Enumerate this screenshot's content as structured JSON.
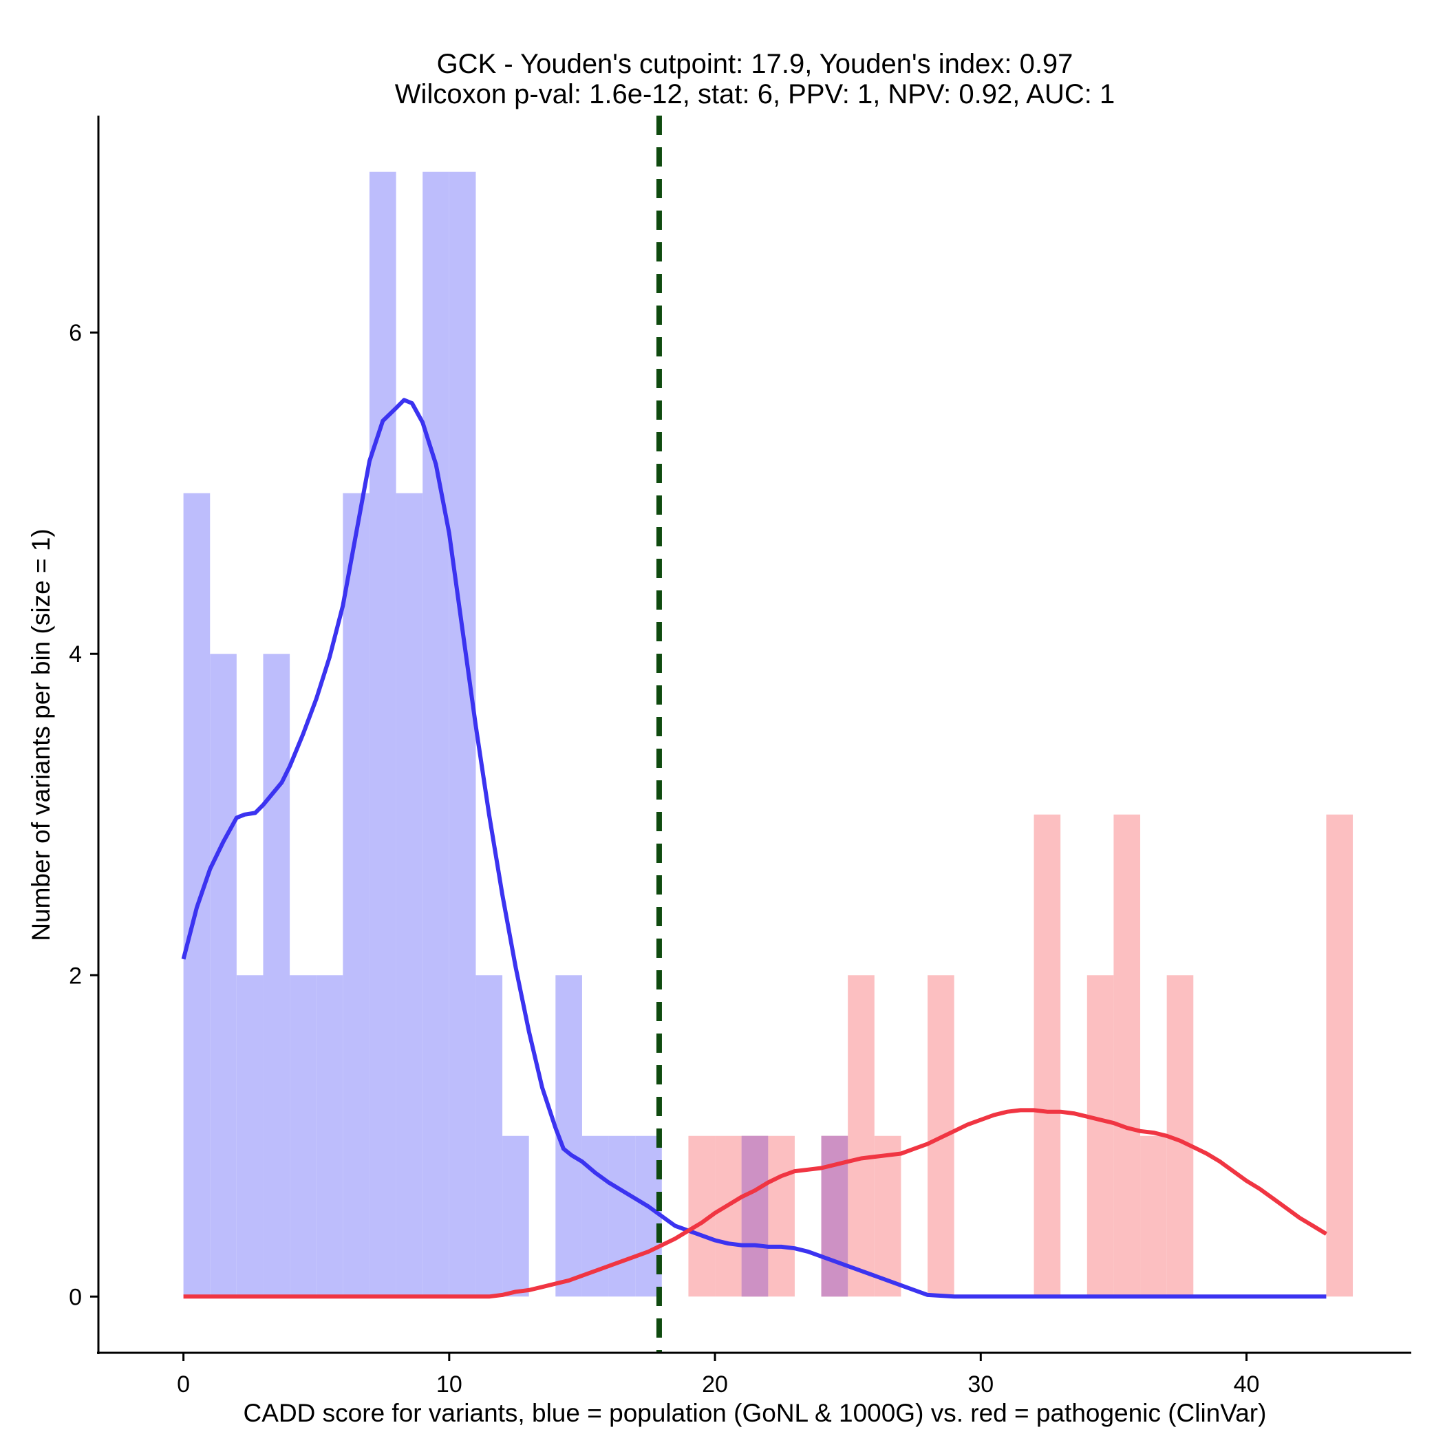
{
  "chart_data": {
    "type": "bar",
    "title_line1": "GCK - Youden's cutpoint: 17.9, Youden's index: 0.97",
    "title_line2": "Wilcoxon p-val: 1.6e-12, stat: 6, PPV: 1, NPV: 0.92, AUC: 1",
    "xlabel": "CADD score for variants, blue = population (GoNL & 1000G) vs. red = pathogenic (ClinVar)",
    "ylabel": "Number of variants per bin (size = 1)",
    "xlim": [
      -3.2,
      46.2
    ],
    "ylim": [
      -0.35,
      7.35
    ],
    "x_ticks": [
      0,
      10,
      20,
      30,
      40
    ],
    "y_ticks": [
      0,
      2,
      4,
      6
    ],
    "bin_width": 1,
    "cutpoint": 17.9,
    "colors": {
      "population_bar": "#bdbdfc",
      "pathogenic_bar": "#fcbfc1",
      "overlap_bar": "#cd91c4",
      "population_line": "#3b33f0",
      "pathogenic_line": "#f03542",
      "cutpoint_line": "#0f4a0f"
    },
    "series": [
      {
        "name": "population (GoNL & 1000G)",
        "bins": [
          {
            "start": 0,
            "count": 5
          },
          {
            "start": 1,
            "count": 4
          },
          {
            "start": 2,
            "count": 2
          },
          {
            "start": 3,
            "count": 4
          },
          {
            "start": 4,
            "count": 2
          },
          {
            "start": 5,
            "count": 2
          },
          {
            "start": 6,
            "count": 5
          },
          {
            "start": 7,
            "count": 7
          },
          {
            "start": 8,
            "count": 5
          },
          {
            "start": 9,
            "count": 7
          },
          {
            "start": 10,
            "count": 7
          },
          {
            "start": 11,
            "count": 2
          },
          {
            "start": 12,
            "count": 1
          },
          {
            "start": 14,
            "count": 2
          },
          {
            "start": 15,
            "count": 1
          },
          {
            "start": 16,
            "count": 1
          },
          {
            "start": 17,
            "count": 1
          },
          {
            "start": 21,
            "count": 1
          },
          {
            "start": 24,
            "count": 1
          }
        ]
      },
      {
        "name": "pathogenic (ClinVar)",
        "bins": [
          {
            "start": 19,
            "count": 1
          },
          {
            "start": 20,
            "count": 1
          },
          {
            "start": 21,
            "count": 1
          },
          {
            "start": 22,
            "count": 1
          },
          {
            "start": 24,
            "count": 1
          },
          {
            "start": 25,
            "count": 2
          },
          {
            "start": 26,
            "count": 1
          },
          {
            "start": 28,
            "count": 2
          },
          {
            "start": 32,
            "count": 3
          },
          {
            "start": 34,
            "count": 2
          },
          {
            "start": 35,
            "count": 3
          },
          {
            "start": 36,
            "count": 1
          },
          {
            "start": 37,
            "count": 2
          },
          {
            "start": 43,
            "count": 3
          }
        ]
      }
    ],
    "density_population": {
      "x": [
        0,
        0.5,
        1,
        1.5,
        2,
        2.3,
        2.7,
        3,
        3.3,
        3.7,
        4,
        4.5,
        5,
        5.5,
        6,
        6.5,
        7,
        7.5,
        8,
        8.3,
        8.6,
        9,
        9.5,
        10,
        10.5,
        11,
        11.5,
        12,
        12.5,
        13,
        13.5,
        14,
        14.3,
        14.6,
        15,
        15.5,
        16,
        16.5,
        17,
        17.5,
        18,
        18.5,
        19,
        19.5,
        20,
        20.5,
        21,
        21.5,
        22,
        22.5,
        23,
        23.5,
        24,
        24.5,
        25,
        25.5,
        26,
        26.5,
        27,
        27.5,
        28,
        29,
        30,
        32,
        35,
        38,
        40,
        43
      ],
      "y": [
        2.1,
        2.42,
        2.66,
        2.83,
        2.98,
        3.0,
        3.01,
        3.06,
        3.12,
        3.2,
        3.3,
        3.5,
        3.72,
        3.98,
        4.3,
        4.75,
        5.2,
        5.45,
        5.53,
        5.58,
        5.56,
        5.44,
        5.18,
        4.75,
        4.15,
        3.55,
        3.0,
        2.5,
        2.05,
        1.65,
        1.3,
        1.05,
        0.92,
        0.88,
        0.84,
        0.77,
        0.71,
        0.66,
        0.61,
        0.56,
        0.5,
        0.44,
        0.41,
        0.38,
        0.35,
        0.33,
        0.32,
        0.32,
        0.31,
        0.31,
        0.3,
        0.28,
        0.25,
        0.22,
        0.19,
        0.16,
        0.13,
        0.1,
        0.07,
        0.04,
        0.01,
        0,
        0,
        0,
        0,
        0,
        0,
        0
      ]
    },
    "density_pathogenic": {
      "x": [
        0,
        4,
        8,
        11.5,
        12,
        12.5,
        13,
        13.5,
        14,
        14.5,
        15,
        15.5,
        16,
        16.5,
        17,
        17.5,
        18,
        18.5,
        19,
        19.5,
        20,
        20.5,
        21,
        21.5,
        22,
        22.5,
        23,
        23.5,
        24,
        24.5,
        25,
        25.5,
        26,
        26.5,
        27,
        27.5,
        28,
        28.5,
        29,
        29.5,
        30,
        30.5,
        31,
        31.5,
        32,
        32.5,
        33,
        33.5,
        34,
        34.5,
        35,
        35.5,
        36,
        36.5,
        37,
        37.5,
        38,
        38.5,
        39,
        39.5,
        40,
        40.5,
        41,
        41.5,
        42,
        42.5,
        43
      ],
      "y": [
        0,
        0,
        0,
        0,
        0.01,
        0.03,
        0.04,
        0.06,
        0.08,
        0.1,
        0.13,
        0.16,
        0.19,
        0.22,
        0.25,
        0.28,
        0.32,
        0.36,
        0.41,
        0.46,
        0.52,
        0.57,
        0.62,
        0.66,
        0.71,
        0.75,
        0.78,
        0.79,
        0.8,
        0.82,
        0.84,
        0.86,
        0.87,
        0.88,
        0.89,
        0.92,
        0.95,
        0.99,
        1.03,
        1.07,
        1.1,
        1.13,
        1.15,
        1.16,
        1.16,
        1.15,
        1.15,
        1.14,
        1.12,
        1.1,
        1.08,
        1.05,
        1.03,
        1.02,
        1.0,
        0.97,
        0.93,
        0.89,
        0.84,
        0.78,
        0.72,
        0.67,
        0.61,
        0.55,
        0.49,
        0.44,
        0.39
      ]
    }
  }
}
